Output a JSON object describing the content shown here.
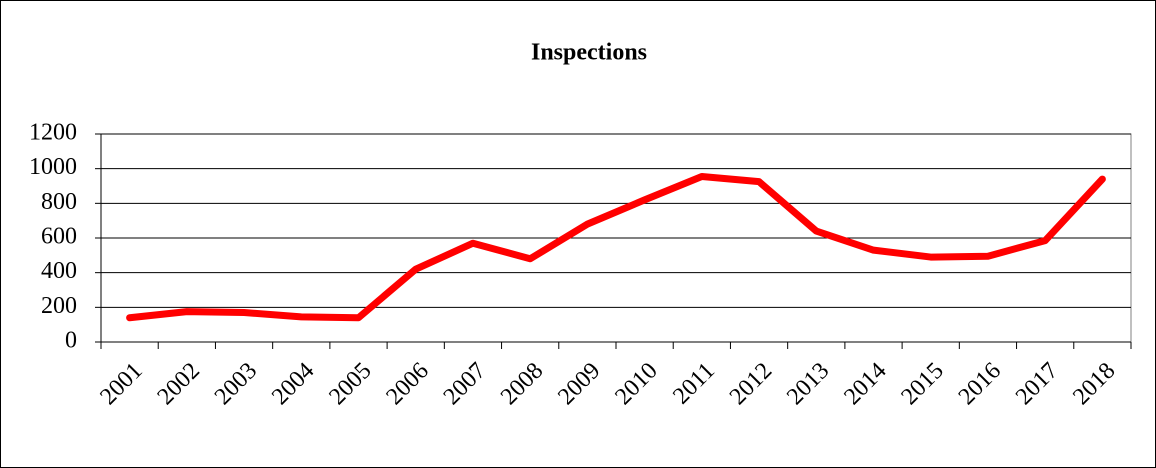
{
  "chart_data": {
    "type": "line",
    "title": "Inspections",
    "categories": [
      "2001",
      "2002",
      "2003",
      "2004",
      "2005",
      "2006",
      "2007",
      "2008",
      "2009",
      "2010",
      "2011",
      "2012",
      "2013",
      "2014",
      "2015",
      "2016",
      "2017",
      "2018"
    ],
    "values": [
      140,
      175,
      170,
      145,
      140,
      420,
      570,
      480,
      680,
      820,
      955,
      925,
      640,
      530,
      490,
      495,
      585,
      940
    ],
    "color": "#ff0000",
    "ylim": [
      0,
      1200
    ],
    "yticks": [
      0,
      200,
      400,
      600,
      800,
      1000,
      1200
    ],
    "grid": true
  }
}
